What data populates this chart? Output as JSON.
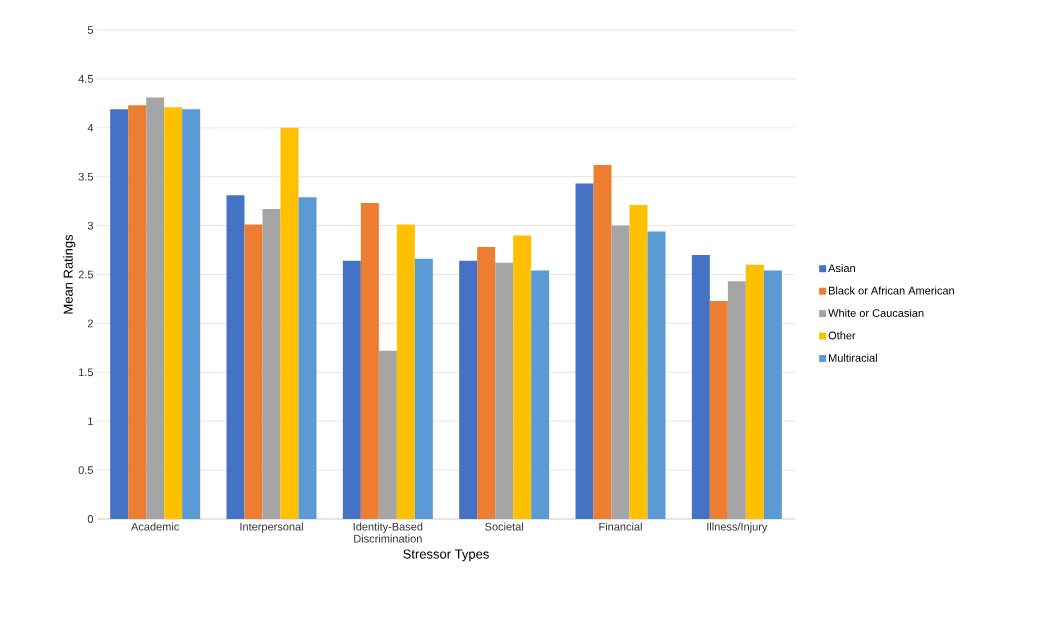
{
  "chart_data": {
    "type": "bar",
    "xlabel": "Stressor Types",
    "ylabel": "Mean Ratings",
    "categories": [
      "Academic",
      "Interpersonal",
      "Identity-Based Discrimination",
      "Societal",
      "Financial",
      "Illness/Injury"
    ],
    "series": [
      {
        "name": "Asian",
        "color": "#4472c4",
        "values": [
          4.19,
          3.31,
          2.64,
          2.64,
          3.43,
          2.7
        ]
      },
      {
        "name": "Black or African American",
        "color": "#ed7d31",
        "values": [
          4.23,
          3.01,
          3.23,
          2.78,
          3.62,
          2.23
        ]
      },
      {
        "name": "White or Caucasian",
        "color": "#a5a5a5",
        "values": [
          4.31,
          3.17,
          1.72,
          2.62,
          3.0,
          2.43
        ]
      },
      {
        "name": "Other",
        "color": "#ffc000",
        "values": [
          4.21,
          4.0,
          3.01,
          2.9,
          3.21,
          2.6
        ]
      },
      {
        "name": "Multiracial",
        "color": "#5b9bd5",
        "values": [
          4.19,
          3.29,
          2.66,
          2.54,
          2.94,
          2.54
        ]
      }
    ],
    "ylim": [
      0,
      5
    ],
    "yticks": [
      0,
      0.5,
      1,
      1.5,
      2,
      2.5,
      3,
      3.5,
      4,
      4.5,
      5
    ],
    "grid": "y",
    "legend": "right"
  }
}
